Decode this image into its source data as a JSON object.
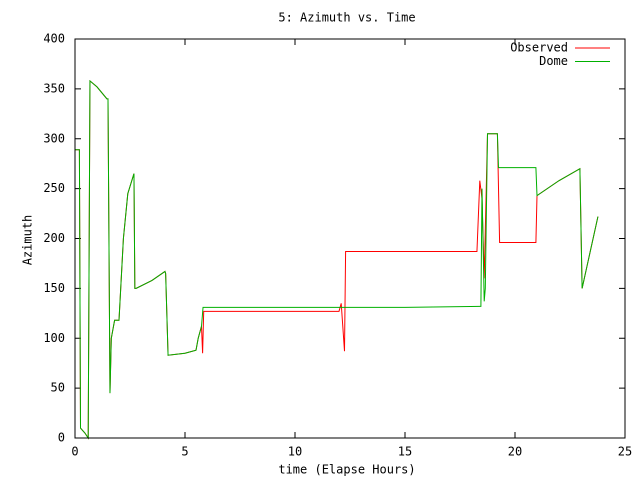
{
  "chart_data": {
    "type": "line",
    "title": "5: Azimuth vs. Time",
    "x_label": "time (Elapse Hours)",
    "y_label": "Azimuth",
    "xlim": [
      0,
      25
    ],
    "xticks": [
      0,
      5,
      10,
      15,
      20,
      25
    ],
    "ylim": [
      0,
      400
    ],
    "yticks": [
      0,
      50,
      100,
      150,
      200,
      250,
      300,
      350,
      400
    ],
    "grid": false,
    "legend": "top-right",
    "series": [
      {
        "name": "Observed",
        "color": "#ff0000",
        "x": [
          0,
          0.2,
          0.25,
          0.45,
          0.6,
          0.68,
          1.0,
          1.45,
          1.5,
          1.59,
          1.65,
          1.8,
          2.0,
          2.2,
          2.4,
          2.68,
          2.72,
          2.78,
          3.5,
          4.09,
          4.12,
          4.23,
          5.0,
          5.5,
          5.6,
          5.75,
          5.8,
          5.85,
          9,
          12.0,
          12.1,
          12.25,
          12.3,
          15,
          18.27,
          18.4,
          18.5,
          18.6,
          18.75,
          19.2,
          19.3,
          20.95,
          21.0,
          22,
          22.95,
          23.05,
          23.3,
          23.77
        ],
        "values": [
          289,
          289,
          10,
          5,
          0,
          358,
          352,
          340,
          340,
          45,
          100,
          118,
          118,
          200,
          245,
          265,
          150,
          150,
          158,
          167,
          165,
          83,
          85,
          88,
          100,
          112,
          85,
          127,
          127,
          127,
          135,
          87,
          187,
          187,
          187,
          258,
          240,
          160,
          305,
          305,
          196,
          196,
          243,
          258,
          270,
          150,
          175,
          222
        ]
      },
      {
        "name": "Dome",
        "color": "#00b000",
        "x": [
          0,
          0.2,
          0.25,
          0.45,
          0.6,
          0.68,
          1.0,
          1.45,
          1.5,
          1.59,
          1.65,
          1.8,
          2.0,
          2.2,
          2.4,
          2.68,
          2.72,
          2.78,
          3.5,
          4.09,
          4.12,
          4.23,
          5.0,
          5.5,
          5.6,
          5.75,
          5.82,
          10,
          15,
          18.4,
          18.45,
          18.5,
          18.6,
          18.65,
          18.75,
          19.2,
          19.25,
          20.95,
          21.0,
          22,
          22.95,
          23.05,
          23.3,
          23.77
        ],
        "values": [
          289,
          289,
          10,
          5,
          0,
          358,
          352,
          340,
          340,
          45,
          100,
          118,
          118,
          200,
          245,
          265,
          150,
          150,
          158,
          167,
          165,
          83,
          85,
          88,
          100,
          112,
          131,
          131,
          131,
          132,
          132,
          250,
          137,
          150,
          305,
          305,
          271,
          271,
          243,
          258,
          270,
          150,
          175,
          222
        ]
      }
    ]
  }
}
